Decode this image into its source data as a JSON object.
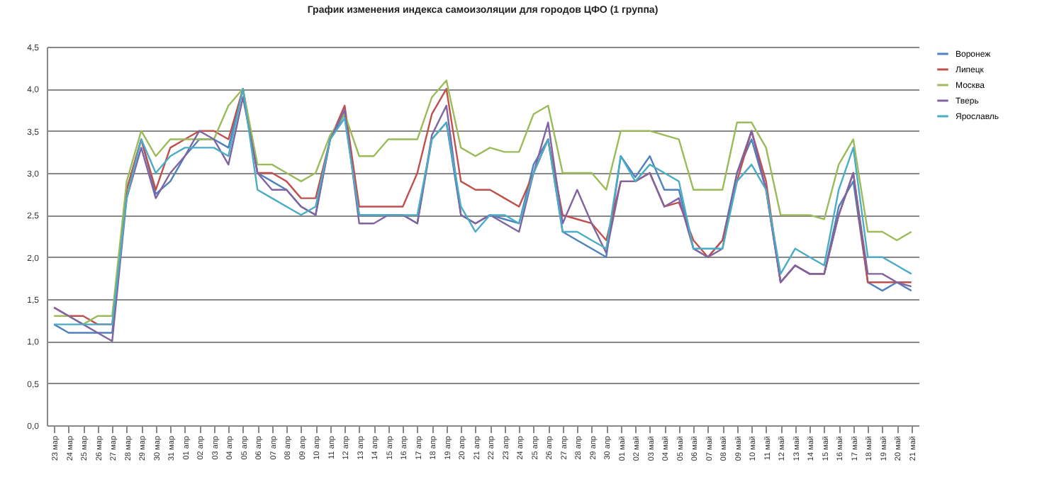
{
  "chart_data": {
    "type": "line",
    "title": "График изменения индекса самоизоляции для городов ЦФО (1 группа)",
    "categories": [
      "23 мар",
      "24 мар",
      "25 мар",
      "26 мар",
      "27 мар",
      "28 мар",
      "29 мар",
      "30 мар",
      "31 мар",
      "01 апр",
      "02 апр",
      "03 апр",
      "04 апр",
      "05 апр",
      "06 апр",
      "07 апр",
      "08 апр",
      "09 апр",
      "10 апр",
      "11 апр",
      "12 апр",
      "13 апр",
      "14 апр",
      "15 апр",
      "16 апр",
      "17 апр",
      "18 апр",
      "19 апр",
      "20 апр",
      "21 апр",
      "22 апр",
      "23 апр",
      "24 апр",
      "25 апр",
      "26 апр",
      "27 апр",
      "28 апр",
      "29 апр",
      "30 апр",
      "01 май",
      "02 май",
      "03 май",
      "04 май",
      "05 май",
      "06 май",
      "07 май",
      "08 май",
      "09 май",
      "10 май",
      "11 май",
      "12 май",
      "13 май",
      "14 май",
      "15 май",
      "16 май",
      "17 май",
      "18 май",
      "19 май",
      "20 май",
      "21 май"
    ],
    "series": [
      {
        "name": "Воронеж",
        "color": "#4f81bd",
        "values": [
          1.2,
          1.1,
          1.1,
          1.1,
          1.1,
          2.8,
          3.4,
          2.75,
          2.9,
          3.2,
          3.4,
          3.4,
          3.3,
          4.0,
          3.0,
          2.9,
          2.8,
          2.6,
          2.5,
          3.4,
          3.7,
          2.5,
          2.5,
          2.5,
          2.5,
          2.4,
          3.4,
          3.6,
          2.5,
          2.4,
          2.5,
          2.45,
          2.4,
          3.1,
          3.4,
          2.3,
          2.2,
          2.1,
          2.0,
          3.2,
          2.95,
          3.2,
          2.8,
          2.8,
          2.1,
          2.0,
          2.2,
          3.0,
          3.4,
          2.8,
          1.7,
          1.9,
          1.8,
          1.8,
          2.6,
          2.9,
          1.7,
          1.6,
          1.7,
          1.6
        ]
      },
      {
        "name": "Липецк",
        "color": "#c0504d",
        "values": [
          1.4,
          1.3,
          1.3,
          1.2,
          1.2,
          2.8,
          3.4,
          2.8,
          3.3,
          3.4,
          3.5,
          3.5,
          3.4,
          4.0,
          3.0,
          3.0,
          2.9,
          2.7,
          2.7,
          3.4,
          3.8,
          2.6,
          2.6,
          2.6,
          2.6,
          3.0,
          3.7,
          4.0,
          2.9,
          2.8,
          2.8,
          2.7,
          2.6,
          3.0,
          3.4,
          2.5,
          2.45,
          2.4,
          2.2,
          2.9,
          2.9,
          3.0,
          2.6,
          2.65,
          2.2,
          2.0,
          2.2,
          2.9,
          3.5,
          2.9,
          1.7,
          1.9,
          1.8,
          1.8,
          2.5,
          3.0,
          1.7,
          1.7,
          1.7,
          1.7
        ]
      },
      {
        "name": "Москва",
        "color": "#9bbb59",
        "values": [
          1.3,
          1.3,
          1.2,
          1.3,
          1.3,
          2.9,
          3.5,
          3.2,
          3.4,
          3.4,
          3.4,
          3.4,
          3.8,
          4.0,
          3.1,
          3.1,
          3.0,
          2.9,
          3.0,
          3.45,
          3.7,
          3.2,
          3.2,
          3.4,
          3.4,
          3.4,
          3.9,
          4.1,
          3.3,
          3.2,
          3.3,
          3.25,
          3.25,
          3.7,
          3.8,
          3.0,
          3.0,
          3.0,
          2.8,
          3.5,
          3.5,
          3.5,
          3.45,
          3.4,
          2.8,
          2.8,
          2.8,
          3.6,
          3.6,
          3.3,
          2.5,
          2.5,
          2.5,
          2.45,
          3.1,
          3.4,
          2.3,
          2.3,
          2.2,
          2.3
        ]
      },
      {
        "name": "Тверь",
        "color": "#8064a2",
        "values": [
          1.4,
          1.3,
          1.2,
          1.1,
          1.0,
          2.7,
          3.3,
          2.7,
          3.0,
          3.2,
          3.5,
          3.4,
          3.1,
          3.9,
          3.0,
          2.8,
          2.8,
          2.6,
          2.5,
          3.4,
          3.75,
          2.4,
          2.4,
          2.5,
          2.5,
          2.4,
          3.45,
          3.8,
          2.5,
          2.4,
          2.5,
          2.4,
          2.3,
          3.0,
          3.6,
          2.4,
          2.8,
          2.4,
          2.05,
          2.9,
          2.9,
          3.0,
          2.6,
          2.7,
          2.1,
          2.0,
          2.1,
          3.0,
          3.5,
          2.8,
          1.7,
          1.9,
          1.8,
          1.8,
          2.5,
          3.0,
          1.8,
          1.8,
          1.7,
          1.65
        ]
      },
      {
        "name": "Ярославль",
        "color": "#4bacc6",
        "values": [
          1.2,
          1.2,
          1.2,
          1.2,
          1.2,
          2.7,
          3.4,
          3.0,
          3.2,
          3.3,
          3.3,
          3.3,
          3.2,
          4.0,
          2.8,
          2.7,
          2.6,
          2.5,
          2.6,
          3.4,
          3.65,
          2.5,
          2.5,
          2.5,
          2.5,
          2.5,
          3.4,
          3.6,
          2.6,
          2.3,
          2.5,
          2.5,
          2.4,
          3.0,
          3.4,
          2.3,
          2.3,
          2.2,
          2.1,
          3.2,
          2.9,
          3.1,
          3.0,
          2.9,
          2.1,
          2.1,
          2.1,
          2.9,
          3.1,
          2.8,
          1.8,
          2.1,
          2.0,
          1.9,
          2.8,
          3.3,
          2.0,
          2.0,
          1.9,
          1.8
        ]
      }
    ],
    "ylim": [
      0,
      4.5
    ],
    "yticks": [
      {
        "value": 0,
        "label": "0,0"
      },
      {
        "value": 0.5,
        "label": "0,5"
      },
      {
        "value": 1,
        "label": "1,0"
      },
      {
        "value": 1.5,
        "label": "1,5"
      },
      {
        "value": 2,
        "label": "2,0"
      },
      {
        "value": 2.5,
        "label": "2,5"
      },
      {
        "value": 3,
        "label": "3,0"
      },
      {
        "value": 3.5,
        "label": "3,5"
      },
      {
        "value": 4,
        "label": "4,0"
      },
      {
        "value": 4.5,
        "label": "4,5"
      }
    ],
    "grid": "y",
    "legend": "right",
    "marker": "none",
    "line_style": "solid"
  }
}
